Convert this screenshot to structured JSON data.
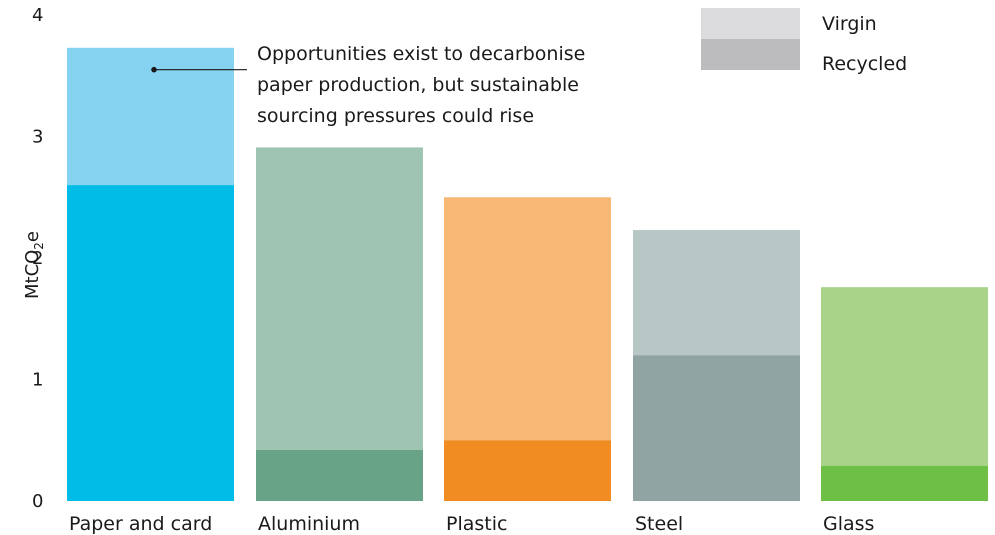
{
  "chart_data": {
    "type": "bar",
    "stacked": true,
    "categories": [
      "Paper and card",
      "Aluminium",
      "Plastic",
      "Steel",
      "Glass"
    ],
    "series": [
      {
        "name": "Recycled",
        "values": [
          2.6,
          0.42,
          0.5,
          1.2,
          0.29
        ]
      },
      {
        "name": "Virgin",
        "values": [
          1.13,
          2.49,
          2.0,
          1.03,
          1.47
        ]
      }
    ],
    "totals": [
      3.73,
      2.91,
      2.5,
      2.23,
      1.76
    ],
    "colors": {
      "virgin": [
        "#85d3f0",
        "#9fc4b1",
        "#f7b775",
        "#b7c7c6",
        "#a8d389"
      ],
      "recycled": [
        "#00bce6",
        "#68a387",
        "#f08c22",
        "#90a5a3",
        "#6dbf45"
      ]
    },
    "legend_colors": {
      "virgin": "#dcdcdf",
      "recycled": "#bcbcbf"
    },
    "ylabel": {
      "main": "MtCO",
      "sub": "2",
      "tail": "e"
    },
    "ylim": [
      0,
      4
    ],
    "yticks": [
      "0",
      "1",
      "2",
      "3",
      "4"
    ],
    "legend": [
      "Virgin",
      "Recycled"
    ],
    "legend_position": "top-right",
    "grid": false,
    "annotation": {
      "lines": [
        "Opportunities exist to decarbonise",
        "paper production, but sustainable",
        "sourcing pressures could rise"
      ],
      "target_category": 0,
      "target_value": 3.55
    }
  }
}
